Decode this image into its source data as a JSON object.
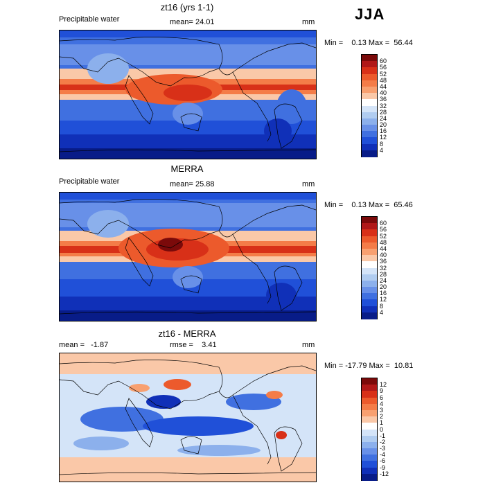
{
  "season": "JJA",
  "panels": [
    {
      "id": "model",
      "title": "zt16 (yrs 1-1)",
      "left_text": "Precipitable water",
      "center_text": "mean=  24.01",
      "right_text": "mm",
      "stats": "Min =    0.13 Max =  56.44",
      "colorbar": {
        "labels": [
          "60",
          "56",
          "52",
          "48",
          "44",
          "40",
          "36",
          "32",
          "28",
          "24",
          "20",
          "16",
          "12",
          "8",
          "4"
        ],
        "colors": [
          "#7b0a0a",
          "#b01818",
          "#d83018",
          "#ec5a2c",
          "#f47c48",
          "#f8a070",
          "#fac8a8",
          "#ffffff",
          "#d4e4f8",
          "#b0ccf0",
          "#8cb0ec",
          "#6890e8",
          "#4070e0",
          "#2050d8",
          "#1030b8",
          "#081c88"
        ]
      }
    },
    {
      "id": "obs",
      "title": "MERRA",
      "left_text": "Precipitable water",
      "center_text": "mean=  25.88",
      "right_text": "mm",
      "stats": "Min =    0.13 Max =  65.46",
      "colorbar": {
        "labels": [
          "60",
          "56",
          "52",
          "48",
          "44",
          "40",
          "36",
          "32",
          "28",
          "24",
          "20",
          "16",
          "12",
          "8",
          "4"
        ],
        "colors": [
          "#7b0a0a",
          "#b01818",
          "#d83018",
          "#ec5a2c",
          "#f47c48",
          "#f8a070",
          "#fac8a8",
          "#ffffff",
          "#d4e4f8",
          "#b0ccf0",
          "#8cb0ec",
          "#6890e8",
          "#4070e0",
          "#2050d8",
          "#1030b8",
          "#081c88"
        ]
      }
    },
    {
      "id": "diff",
      "title": "zt16 - MERRA",
      "left_text": "mean =   -1.87",
      "center_text": "rmse =    3.41",
      "right_text": "mm",
      "stats": "Min = -17.79 Max =  10.81",
      "colorbar": {
        "labels": [
          "12",
          "9",
          "6",
          "4",
          "3",
          "2",
          "1",
          "0",
          "-1",
          "-2",
          "-3",
          "-4",
          "-6",
          "-9",
          "-12"
        ],
        "colors": [
          "#7b0a0a",
          "#b01818",
          "#d83018",
          "#ec5a2c",
          "#f47c48",
          "#f8a070",
          "#fac8a8",
          "#ffffff",
          "#d4e4f8",
          "#b0ccf0",
          "#8cb0ec",
          "#6890e8",
          "#4070e0",
          "#2050d8",
          "#1030b8",
          "#081c88"
        ]
      }
    }
  ]
}
